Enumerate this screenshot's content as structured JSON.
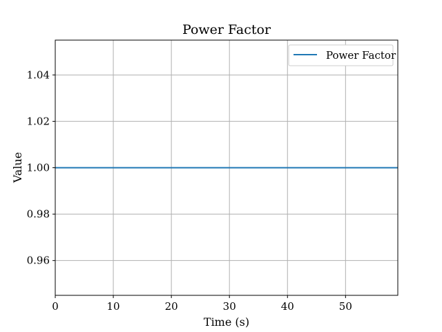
{
  "chart_data": {
    "type": "line",
    "title": "Power Factor",
    "xlabel": "Time (s)",
    "ylabel": "Value",
    "xlim": [
      0,
      59
    ],
    "ylim": [
      0.945,
      1.055
    ],
    "xticks": [
      0,
      10,
      20,
      30,
      40,
      50
    ],
    "yticks": [
      0.96,
      0.98,
      1.0,
      1.02,
      1.04
    ],
    "xtick_labels": [
      "0",
      "10",
      "20",
      "30",
      "40",
      "50"
    ],
    "ytick_labels": [
      "0.96",
      "0.98",
      "1.00",
      "1.02",
      "1.04"
    ],
    "grid": true,
    "legend_position": "top-right",
    "series": [
      {
        "name": "Power Factor",
        "color": "#1f77b4",
        "x": [
          0,
          10,
          20,
          30,
          40,
          50,
          59
        ],
        "y": [
          1.0,
          1.0,
          1.0,
          1.0,
          1.0,
          1.0,
          1.0
        ]
      }
    ]
  }
}
